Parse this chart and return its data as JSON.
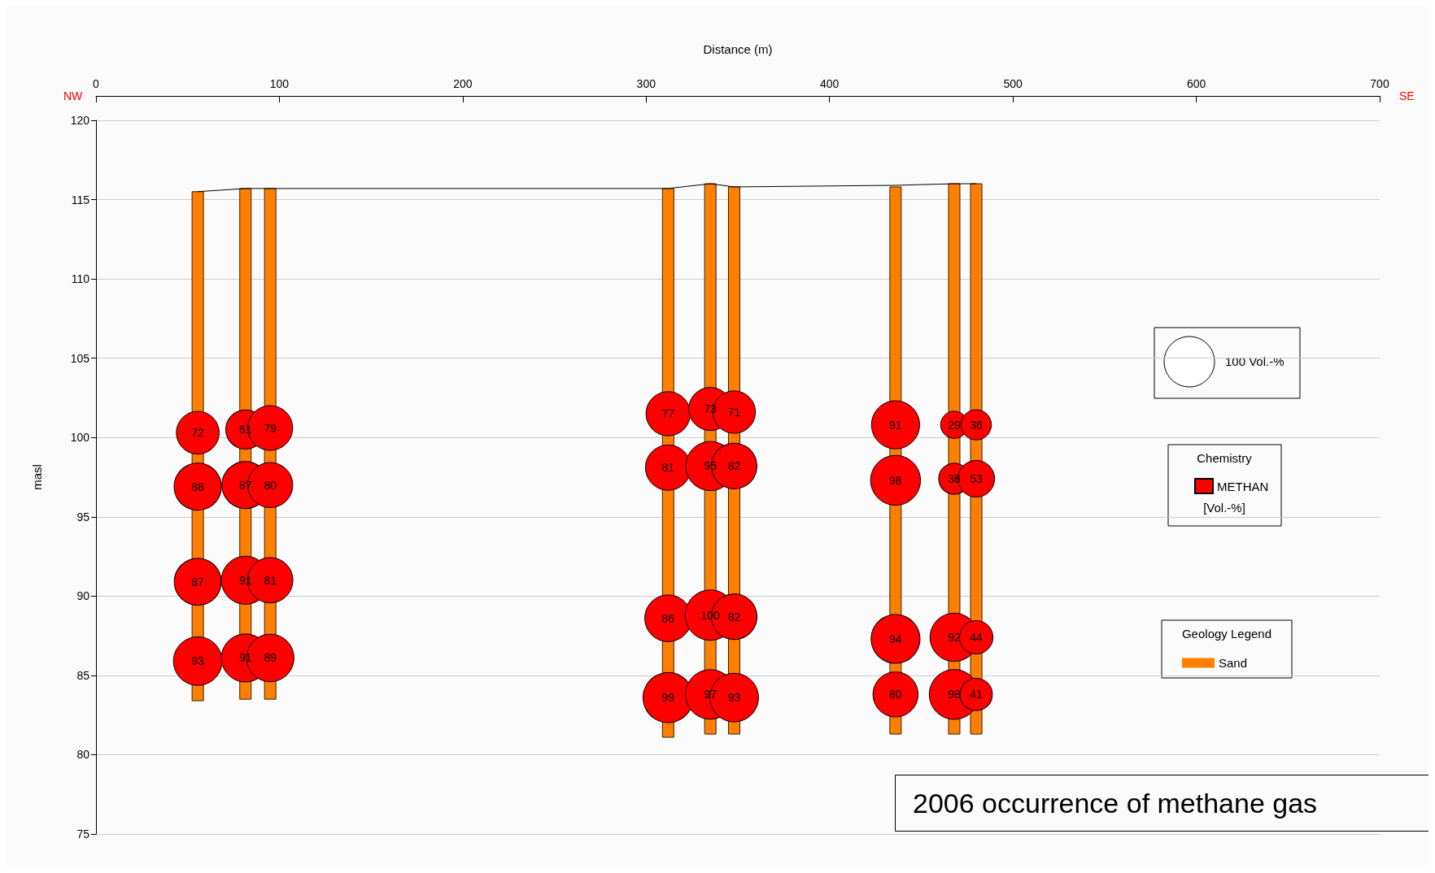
{
  "chart_data": {
    "type": "bubble",
    "title": "2006 occurrence of methane gas",
    "xlabel": "Distance (m)",
    "ylabel": "masl",
    "xlim": [
      0,
      700
    ],
    "xticks": [
      0,
      100,
      200,
      300,
      400,
      500,
      600,
      700
    ],
    "ylim": [
      75,
      120
    ],
    "yticks": [
      75,
      80,
      85,
      90,
      95,
      100,
      105,
      110,
      115,
      120
    ],
    "grid": "y",
    "legend": "right",
    "size_legend": [
      {
        "value": 100,
        "label": "100 Vol.-%"
      }
    ],
    "annotations": [
      "NW",
      "SE",
      "Chemistry",
      "[Vol.-%]",
      "Geology Legend"
    ],
    "series": [
      {
        "type": "bar",
        "name": "Sand",
        "color": "#ff8000",
        "x": [
          55.5,
          81.5,
          95,
          312,
          335,
          348,
          436,
          468,
          480
        ],
        "base": [
          83.4,
          83.5,
          83.5,
          81.1,
          81.3,
          81.3,
          81.3,
          81.3,
          81.3
        ],
        "values": [
          32.1,
          32.2,
          32.2,
          34.6,
          34.7,
          34.5,
          34.5,
          34.7,
          34.7
        ]
      },
      {
        "type": "line",
        "color": "#000000",
        "marker": "none",
        "line_style": "solid",
        "x": [
          55.5,
          81.5,
          95,
          312,
          335,
          348,
          436,
          468,
          480
        ],
        "values": [
          115.5,
          115.7,
          115.7,
          115.7,
          116,
          115.8,
          115.9,
          116,
          116
        ]
      },
      {
        "name": "METHAN",
        "color": "#ff0000",
        "x": [
          55.5,
          55.5,
          55.5,
          55.5,
          81.5,
          81.5,
          81.5,
          81.5,
          95,
          95,
          95,
          95,
          312,
          312,
          312,
          312,
          335,
          335,
          335,
          335,
          348,
          348,
          348,
          348,
          436,
          436,
          436,
          436,
          468,
          468,
          468,
          468,
          480,
          480,
          480,
          480
        ],
        "values": [
          100.3,
          96.9,
          90.9,
          85.9,
          100.5,
          97,
          91,
          86.1,
          100.6,
          97,
          91,
          86.1,
          101.5,
          98.1,
          88.6,
          83.6,
          101.8,
          98.2,
          88.8,
          83.8,
          101.6,
          98.2,
          88.7,
          83.6,
          100.8,
          97.3,
          87.3,
          83.8,
          100.8,
          97.4,
          87.4,
          83.8,
          100.8,
          97.4,
          87.4,
          83.8
        ],
        "sizes": [
          72,
          88,
          87,
          93,
          61,
          87,
          91,
          91,
          79,
          80,
          81,
          89,
          77,
          81,
          86,
          99,
          73,
          95,
          100,
          97,
          71,
          82,
          82,
          93,
          91,
          98,
          94,
          80,
          29,
          38,
          92,
          98,
          36,
          53,
          44,
          41
        ],
        "value_labels": [
          "72",
          "88",
          "87",
          "93",
          "61",
          "87",
          "91",
          "91",
          "79",
          "80",
          "81",
          "89",
          "77",
          "81",
          "86",
          "99",
          "73",
          "95",
          "100",
          "97",
          "71",
          "82",
          "82",
          "93",
          "91",
          "98",
          "94",
          "80",
          "29",
          "38",
          "92",
          "98",
          "36",
          "53",
          "44",
          "41"
        ]
      }
    ]
  }
}
